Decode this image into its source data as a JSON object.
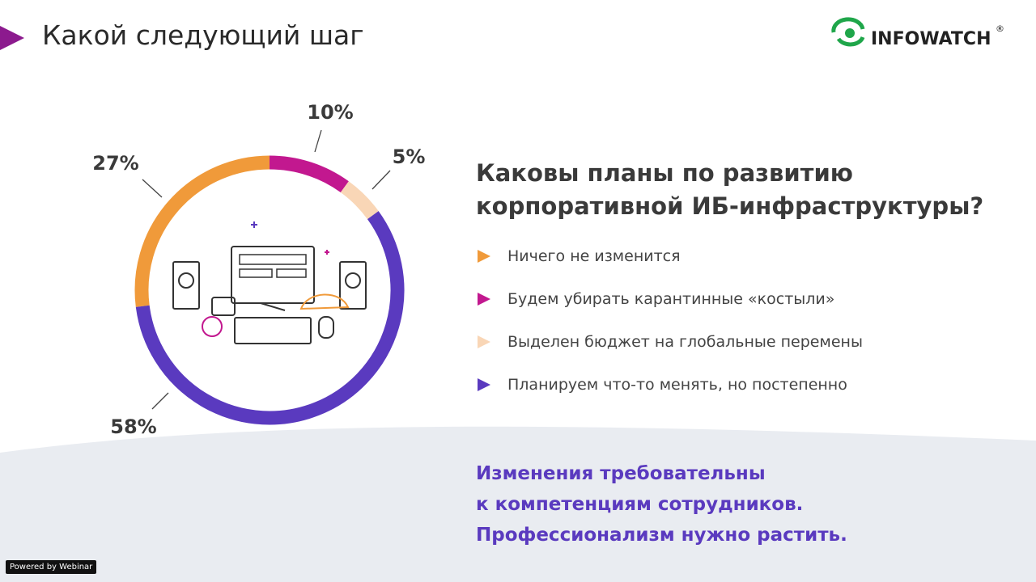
{
  "header": {
    "title": "Какой следующий шаг",
    "logo": "INFOWATCH",
    "logo_mark": "®"
  },
  "chart_data": {
    "type": "donut",
    "categories": [
      "Ничего не изменится",
      "Будем убирать карантинные «костыли»",
      "Выделен бюджет на глобальные перемены",
      "Планируем что-то менять, но постепенно"
    ],
    "values": [
      27,
      10,
      5,
      58
    ],
    "value_labels": [
      "27%",
      "10%",
      "5%",
      "58%"
    ],
    "colors": [
      "#f09a3a",
      "#c2188f",
      "#f9d6b6",
      "#5a3abf"
    ]
  },
  "question": [
    "Каковы планы по развитию",
    "корпоративной ИБ-инфраструктуры?"
  ],
  "conclusion": [
    "Изменения требовательны",
    "к компетенциям сотрудников.",
    "Профессионализм нужно растить."
  ],
  "footer": "Powered by Webinar"
}
